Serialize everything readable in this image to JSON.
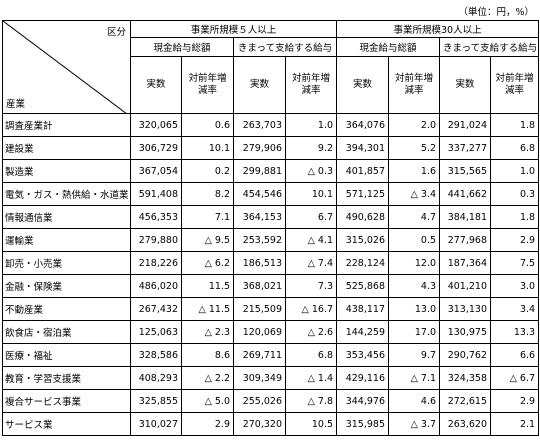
{
  "header": {
    "unit": "（単位：円，%）"
  },
  "table": {
    "corner_top": "区分",
    "corner_bottom": "産業",
    "groups": [
      "事業所規模５人以上",
      "事業所規模30人以上"
    ],
    "subgroups": [
      "現金給与総額",
      "きまって支給する給与",
      "現金給与総額",
      "きまって支給する給与"
    ],
    "columns": [
      "実数",
      "対前年増減率",
      "実数",
      "対前年増減率",
      "実数",
      "対前年増減率",
      "実数",
      "対前年増減率"
    ],
    "rows": [
      [
        "調査産業計",
        "320,065",
        "0.6",
        "263,703",
        "1.0",
        "364,076",
        "2.0",
        "291,024",
        "1.8"
      ],
      [
        "建設業",
        "306,729",
        "10.1",
        "279,906",
        "9.2",
        "394,301",
        "5.2",
        "337,277",
        "6.8"
      ],
      [
        "製造業",
        "367,054",
        "0.2",
        "299,881",
        "△ 0.3",
        "401,857",
        "1.6",
        "315,565",
        "1.0"
      ],
      [
        "電気・ガス・熱供給・水道業",
        "591,408",
        "8.2",
        "454,546",
        "10.1",
        "571,125",
        "△ 3.4",
        "441,662",
        "0.3"
      ],
      [
        "情報通信業",
        "456,353",
        "7.1",
        "364,153",
        "6.7",
        "490,628",
        "4.7",
        "384,181",
        "1.8"
      ],
      [
        "運輸業",
        "279,880",
        "△ 9.5",
        "253,592",
        "△ 4.1",
        "315,026",
        "0.5",
        "277,968",
        "2.9"
      ],
      [
        "卸売・小売業",
        "218,226",
        "△ 6.2",
        "186,513",
        "△ 7.4",
        "228,124",
        "12.0",
        "187,364",
        "7.5"
      ],
      [
        "金融・保険業",
        "486,020",
        "11.5",
        "368,021",
        "7.3",
        "525,868",
        "4.3",
        "401,210",
        "3.0"
      ],
      [
        "不動産業",
        "267,432",
        "△ 11.5",
        "215,509",
        "△ 16.7",
        "438,117",
        "13.0",
        "313,130",
        "3.4"
      ],
      [
        "飲食店・宿泊業",
        "125,063",
        "△ 2.3",
        "120,069",
        "△ 2.6",
        "144,259",
        "17.0",
        "130,975",
        "13.3"
      ],
      [
        "医療・福祉",
        "328,586",
        "8.6",
        "269,711",
        "6.8",
        "353,456",
        "9.7",
        "290,762",
        "6.6"
      ],
      [
        "教育・学習支援業",
        "408,293",
        "△ 2.2",
        "309,349",
        "△ 1.4",
        "429,116",
        "△ 7.1",
        "324,358",
        "△ 6.7"
      ],
      [
        "複合サービス事業",
        "325,855",
        "△ 5.0",
        "255,026",
        "△ 7.8",
        "344,976",
        "4.6",
        "272,615",
        "2.9"
      ],
      [
        "サービス業",
        "310,027",
        "2.9",
        "270,320",
        "10.5",
        "315,985",
        "△ 3.7",
        "263,620",
        "2.1"
      ]
    ]
  }
}
